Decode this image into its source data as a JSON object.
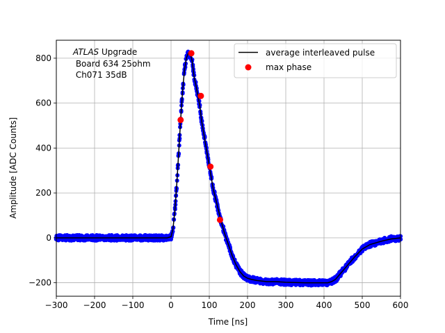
{
  "chart_data": {
    "type": "line",
    "title": "",
    "xlabel": "Time [ns]",
    "ylabel": "Amplitude [ADC Counts]",
    "xlim": [
      -300,
      600
    ],
    "ylim": [
      -260,
      880
    ],
    "xticks": [
      -300,
      -200,
      -100,
      0,
      100,
      200,
      300,
      400,
      500,
      600
    ],
    "yticks": [
      -200,
      0,
      200,
      400,
      600,
      800
    ],
    "xtick_labels": [
      "−300",
      "−200",
      "−100",
      "0",
      "100",
      "200",
      "300",
      "400",
      "500",
      "600"
    ],
    "ytick_labels": [
      "−200",
      "0",
      "200",
      "400",
      "600",
      "800"
    ],
    "grid": true,
    "legend_position": "top-right",
    "annotation": {
      "italic": "ATLAS",
      "line1_rest": " Upgrade",
      "line2": " Board 634 25ohm",
      "line3": " Ch071 35dB"
    },
    "colors": {
      "samples": "#0000ff",
      "average": "#000000",
      "max_phase": "#ff0000",
      "grid": "#b0b0b0"
    },
    "series": [
      {
        "name": "average interleaved pulse",
        "style": "line",
        "x": [
          -300,
          -250,
          -200,
          -150,
          -100,
          -50,
          -10,
          0,
          5,
          10,
          15,
          20,
          25,
          30,
          35,
          40,
          45,
          50,
          55,
          60,
          65,
          70,
          75,
          80,
          90,
          100,
          110,
          120,
          130,
          140,
          150,
          160,
          170,
          180,
          190,
          200,
          210,
          225,
          250,
          275,
          300,
          350,
          400,
          410,
          420,
          430,
          440,
          460,
          480,
          500,
          520,
          550,
          575,
          600
        ],
        "y": [
          0,
          0,
          0,
          0,
          0,
          0,
          0,
          5,
          40,
          120,
          240,
          380,
          525,
          650,
          745,
          800,
          822,
          820,
          790,
          720,
          680,
          635,
          590,
          520,
          420,
          320,
          220,
          150,
          80,
          20,
          -30,
          -80,
          -120,
          -150,
          -170,
          -180,
          -185,
          -190,
          -195,
          -195,
          -198,
          -200,
          -200,
          -200,
          -195,
          -185,
          -165,
          -125,
          -85,
          -50,
          -30,
          -15,
          -5,
          0
        ]
      },
      {
        "name": "max phase",
        "style": "markers",
        "x": [
          25,
          53,
          78,
          103,
          128
        ],
        "y": [
          525,
          822,
          632,
          317,
          80
        ]
      }
    ]
  }
}
